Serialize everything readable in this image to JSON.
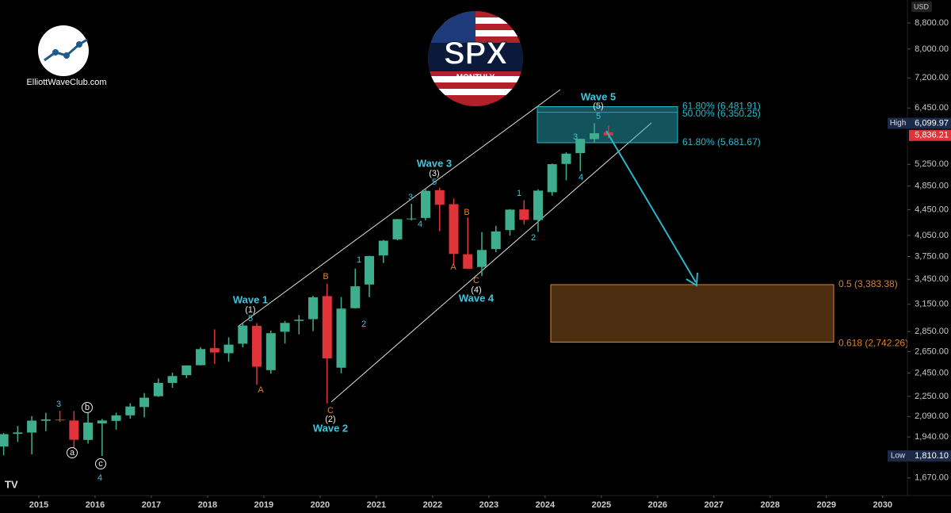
{
  "brand": "ElliottWaveClub.com",
  "logo": {
    "symbol": "SPX",
    "timeframe": "MONTHLY"
  },
  "chart_data": {
    "type": "candlestick",
    "currency": "USD",
    "log_scale": true,
    "grid": false,
    "up_color": "#3fae8f",
    "down_color": "#e0333a",
    "x": [
      2014.375,
      2014.625,
      2014.875,
      2015.125,
      2015.375,
      2015.625,
      2015.875,
      2016.125,
      2016.375,
      2016.625,
      2016.875,
      2017.125,
      2017.375,
      2017.625,
      2017.875,
      2018.125,
      2018.375,
      2018.625,
      2018.875,
      2019.125,
      2019.375,
      2019.625,
      2019.875,
      2020.125,
      2020.375,
      2020.625,
      2020.875,
      2021.125,
      2021.375,
      2021.625,
      2021.875,
      2022.125,
      2022.375,
      2022.625,
      2022.875,
      2023.125,
      2023.375,
      2023.625,
      2023.875,
      2024.125,
      2024.375,
      2024.625,
      2024.875,
      2025.125
    ],
    "open": [
      1873,
      1962,
      1971,
      2058,
      2067,
      2060,
      1919,
      2038,
      2057,
      2099,
      2164,
      2251,
      2363,
      2431,
      2521,
      2683,
      2634,
      2727,
      2911,
      2476,
      2849,
      2964,
      2983,
      3245,
      2498,
      3105,
      3385,
      3764,
      3992,
      4301,
      4317,
      4778,
      4540,
      3781,
      3609,
      3853,
      4130,
      4453,
      4284,
      4743,
      5258,
      5471,
      5757,
      5903
    ],
    "high": [
      1968,
      2019,
      2093,
      2119,
      2135,
      2133,
      2116,
      2072,
      2120,
      2194,
      2278,
      2401,
      2454,
      2520,
      2694,
      2873,
      2791,
      2941,
      2940,
      2860,
      2964,
      3028,
      3248,
      3394,
      3233,
      3588,
      3760,
      3984,
      4302,
      4546,
      4808,
      4819,
      4637,
      4325,
      4100,
      4195,
      4458,
      4607,
      4793,
      5265,
      5487,
      5767,
      6099.97,
      6050
    ],
    "low": [
      1814,
      1905,
      1820,
      1981,
      2048,
      1867,
      1893,
      1810,
      1992,
      2074,
      2084,
      2245,
      2322,
      2405,
      2520,
      2533,
      2553,
      2691,
      2346,
      2444,
      2729,
      2822,
      2855,
      2192,
      2447,
      3101,
      3233,
      3662,
      3980,
      4279,
      4279,
      4115,
      3637,
      3584,
      3491,
      3809,
      4048,
      4216,
      4104,
      4683,
      4954,
      5120,
      5675,
      5773
    ],
    "close": [
      1960,
      1972,
      2059,
      2068,
      2063,
      1920,
      2044,
      2060,
      2099,
      2168,
      2239,
      2363,
      2423,
      2519,
      2674,
      2641,
      2718,
      2914,
      2507,
      2834,
      2942,
      2977,
      3231,
      2585,
      3100,
      3363,
      3756,
      3973,
      4298,
      4308,
      4766,
      4530,
      3785,
      3586,
      3840,
      4109,
      4450,
      4288,
      4770,
      5254,
      5460,
      5762,
      5882,
      5836.21
    ],
    "xlim": [
      2014.31,
      2030.44
    ],
    "xticks": [
      2015,
      2016,
      2017,
      2018,
      2019,
      2020,
      2021,
      2022,
      2023,
      2024,
      2025,
      2026,
      2027,
      2028,
      2029,
      2030
    ],
    "ylim": [
      1566,
      9570
    ],
    "yticks": [
      {
        "value": 8800,
        "label": "8,800.00"
      },
      {
        "value": 8000,
        "label": "8,000.00"
      },
      {
        "value": 7200,
        "label": "7,200.00"
      },
      {
        "value": 6450,
        "label": "6,450.00"
      },
      {
        "value": 5250,
        "label": "5,250.00"
      },
      {
        "value": 4850,
        "label": "4,850.00"
      },
      {
        "value": 4450,
        "label": "4,450.00"
      },
      {
        "value": 4050,
        "label": "4,050.00"
      },
      {
        "value": 3750,
        "label": "3,750.00"
      },
      {
        "value": 3450,
        "label": "3,450.00"
      },
      {
        "value": 3150,
        "label": "3,150.00"
      },
      {
        "value": 2850,
        "label": "2,850.00"
      },
      {
        "value": 2650,
        "label": "2,650.00"
      },
      {
        "value": 2450,
        "label": "2,450.00"
      },
      {
        "value": 2250,
        "label": "2,250.00"
      },
      {
        "value": 2090,
        "label": "2,090.00"
      },
      {
        "value": 1940,
        "label": "1,940.00"
      },
      {
        "value": 1670,
        "label": "1,670.00"
      }
    ],
    "price_labels": [
      {
        "name": "High",
        "value": 6099.97,
        "label": "6,099.97",
        "color": "#1c2a4a"
      },
      {
        "value": 5836.21,
        "label": "5,836.21",
        "color": "#e0333a"
      },
      {
        "name": "Low",
        "value": 1810.1,
        "label": "1,810.10",
        "color": "#1c2a4a"
      }
    ],
    "boxes": [
      {
        "color": "#2ab7ca",
        "levels": [
          {
            "value": 6481.91,
            "label": "61.80% (6,481.91)"
          },
          {
            "value": 6350.25,
            "label": "50.00% (6,350.25)"
          },
          {
            "value": 5681.67,
            "label": "61.80% (5,681.67)"
          }
        ]
      },
      {
        "color": "#d9822b",
        "levels": [
          {
            "value": 3383.38,
            "label": "0.5 (3,383.38)"
          },
          {
            "value": 2742.26,
            "label": "0.618 (2,742.26)"
          }
        ]
      }
    ],
    "annotations": [
      "Wave 1",
      "(1)",
      "5",
      "B",
      "A",
      "1",
      "2",
      "C",
      "(2)",
      "Wave 2",
      "3",
      "Wave 3",
      "(3)",
      "5",
      "4",
      "B",
      "A",
      "C",
      "(4)",
      "Wave 4",
      "1",
      "2",
      "3",
      "4",
      "Wave 5",
      "(5)",
      "5",
      "3",
      "b",
      "a",
      "c",
      "4"
    ]
  }
}
